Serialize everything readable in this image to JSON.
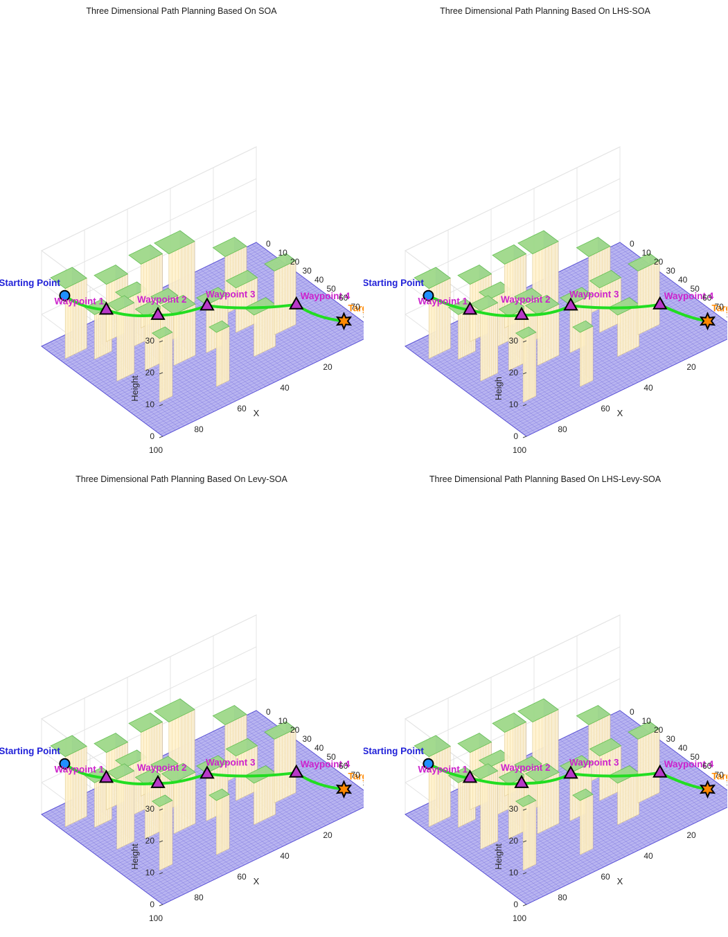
{
  "chart_data": [
    {
      "type": "3d-surface-path",
      "title": "Three Dimensional Path Planning Based On SOA",
      "xlabel": "X",
      "ylabel": "Y",
      "zlabel": "Height",
      "xticks": [
        "100",
        "80",
        "60",
        "40",
        "20",
        "0"
      ],
      "yticks": [
        "0",
        "10",
        "20",
        "30",
        "40",
        "50",
        "60",
        "70",
        "80",
        "90",
        "100"
      ],
      "zticks": [
        "0",
        "10",
        "20",
        "30"
      ],
      "xlim": [
        0,
        100
      ],
      "ylim": [
        0,
        100
      ],
      "zlim": [
        0,
        30
      ],
      "points": {
        "start": {
          "label": "Starting Point",
          "x": 96,
          "y": 12,
          "z": 18
        },
        "waypoint1": {
          "label": "Waypoint 1",
          "x": 80,
          "y": 18,
          "z": 10
        },
        "waypoint2": {
          "label": "Waypoint 2",
          "x": 65,
          "y": 34,
          "z": 8
        },
        "waypoint3": {
          "label": "Waypoint 3",
          "x": 50,
          "y": 48,
          "z": 10
        },
        "waypoint4": {
          "label": "Waypoint 4",
          "x": 22,
          "y": 72,
          "z": 8
        },
        "target": {
          "label": "Target Point",
          "x": 10,
          "y": 90,
          "z": 4
        }
      },
      "path_color": "#22dd22"
    },
    {
      "type": "3d-surface-path",
      "title": "Three Dimensional Path Planning Based On LHS-SOA",
      "xlabel": "X",
      "ylabel": "Y",
      "zlabel": "Heigh",
      "xticks": [
        "100",
        "80",
        "60",
        "40",
        "20",
        "0"
      ],
      "yticks": [
        "0",
        "10",
        "20",
        "30",
        "40",
        "50",
        "60",
        "70",
        "80",
        "90",
        "100"
      ],
      "zticks": [
        "0",
        "10",
        "20",
        "30"
      ],
      "xlim": [
        0,
        100
      ],
      "ylim": [
        0,
        100
      ],
      "zlim": [
        0,
        30
      ],
      "points": {
        "start": {
          "label": "Starting Point",
          "x": 96,
          "y": 12,
          "z": 18
        },
        "waypoint1": {
          "label": "Waypoint 1",
          "x": 80,
          "y": 18,
          "z": 10
        },
        "waypoint2": {
          "label": "Waypoint 2",
          "x": 65,
          "y": 34,
          "z": 8
        },
        "waypoint3": {
          "label": "Waypoint 3",
          "x": 50,
          "y": 48,
          "z": 10
        },
        "waypoint4": {
          "label": "Waypoint 4",
          "x": 22,
          "y": 72,
          "z": 8
        },
        "target": {
          "label": "Target Point",
          "x": 10,
          "y": 90,
          "z": 4
        }
      },
      "path_color": "#22dd22"
    },
    {
      "type": "3d-surface-path",
      "title": "Three Dimensional Path Planning Based On Levy-SOA",
      "xlabel": "X",
      "ylabel": "Y",
      "zlabel": "Height",
      "xticks": [
        "100",
        "80",
        "60",
        "40",
        "20",
        "0"
      ],
      "yticks": [
        "0",
        "10",
        "20",
        "30",
        "40",
        "50",
        "60",
        "70",
        "80",
        "90",
        "100"
      ],
      "zticks": [
        "0",
        "10",
        "20",
        "30"
      ],
      "xlim": [
        0,
        100
      ],
      "ylim": [
        0,
        100
      ],
      "zlim": [
        0,
        30
      ],
      "points": {
        "start": {
          "label": "Starting Point",
          "x": 96,
          "y": 12,
          "z": 18
        },
        "waypoint1": {
          "label": "Waypoint 1",
          "x": 80,
          "y": 18,
          "z": 10
        },
        "waypoint2": {
          "label": "Waypoint 2",
          "x": 65,
          "y": 34,
          "z": 8
        },
        "waypoint3": {
          "label": "Waypoint 3",
          "x": 50,
          "y": 48,
          "z": 10
        },
        "waypoint4": {
          "label": "Waypoint 4",
          "x": 22,
          "y": 72,
          "z": 8
        },
        "target": {
          "label": "Target Point",
          "x": 10,
          "y": 90,
          "z": 4
        }
      },
      "path_color": "#22dd22"
    },
    {
      "type": "3d-surface-path",
      "title": "Three Dimensional Path Planning Based On LHS-Levy-SOA",
      "xlabel": "X",
      "ylabel": "Y",
      "zlabel": "Height",
      "xticks": [
        "100",
        "80",
        "60",
        "40",
        "20",
        "0"
      ],
      "yticks": [
        "0",
        "10",
        "20",
        "30",
        "40",
        "50",
        "60",
        "70",
        "80",
        "90",
        "100"
      ],
      "zticks": [
        "0",
        "10",
        "20",
        "30"
      ],
      "xlim": [
        0,
        100
      ],
      "ylim": [
        0,
        100
      ],
      "zlim": [
        0,
        30
      ],
      "points": {
        "start": {
          "label": "Starting Point",
          "x": 96,
          "y": 12,
          "z": 18
        },
        "waypoint1": {
          "label": "Waypoint 1",
          "x": 80,
          "y": 18,
          "z": 10
        },
        "waypoint2": {
          "label": "Waypoint 2",
          "x": 65,
          "y": 34,
          "z": 8
        },
        "waypoint3": {
          "label": "Waypoint 3",
          "x": 50,
          "y": 48,
          "z": 10
        },
        "waypoint4": {
          "label": "Waypoint 4",
          "x": 22,
          "y": 72,
          "z": 8
        },
        "target": {
          "label": "Target Point",
          "x": 10,
          "y": 90,
          "z": 4
        }
      },
      "path_color": "#22dd22"
    }
  ],
  "colors": {
    "ground_fill": "#b8b4f0",
    "ground_line": "#5a52d6",
    "building_front": "#fff3cf",
    "building_side": "#a89ef0",
    "building_top": "#9fd98a",
    "start_label": "#1f1fd8",
    "waypoint_label": "#cc22cc",
    "target_label": "#ff8800",
    "path": "#22dd22"
  }
}
